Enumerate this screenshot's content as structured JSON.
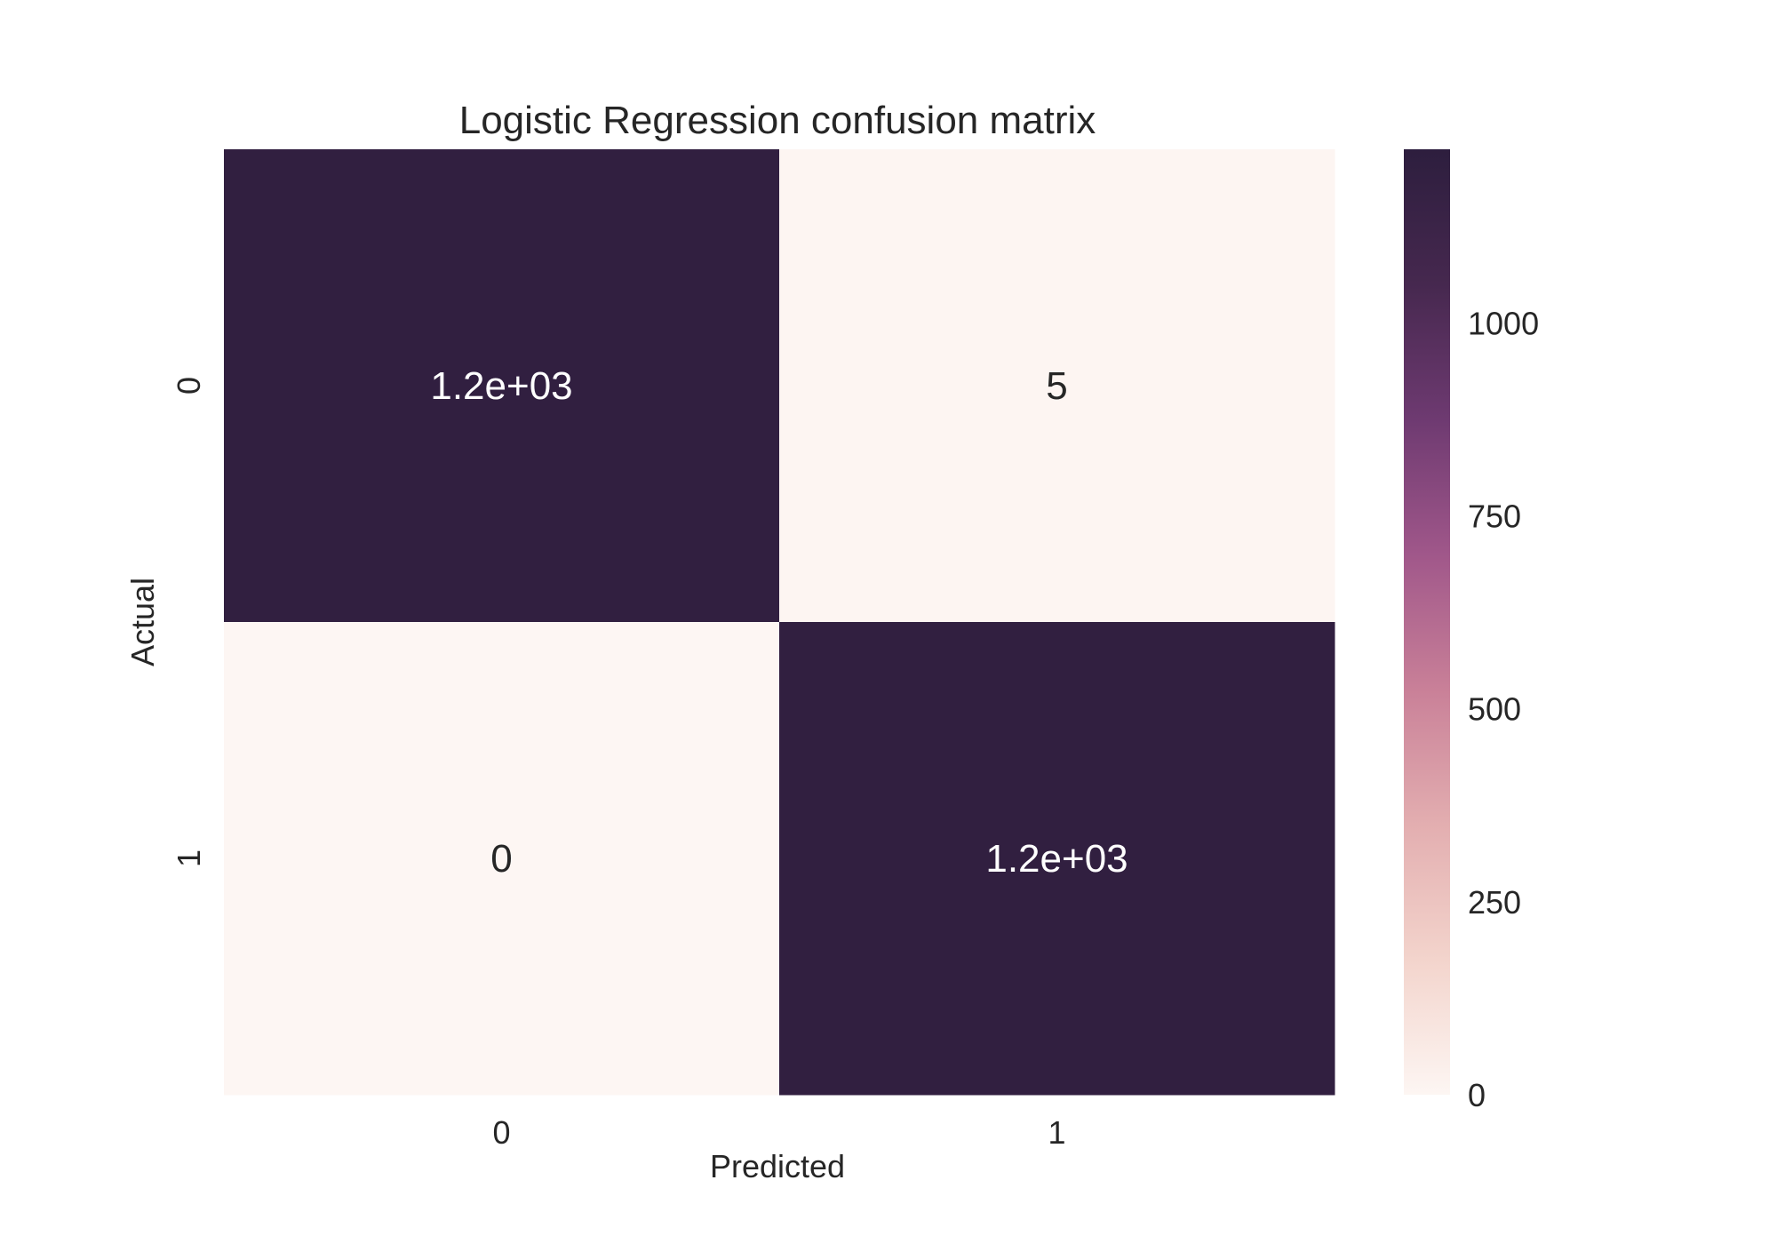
{
  "chart_data": {
    "type": "heatmap",
    "title": "Logistic Regression confusion matrix",
    "xlabel": "Predicted",
    "ylabel": "Actual",
    "x_categories": [
      "0",
      "1"
    ],
    "y_categories": [
      "0",
      "1"
    ],
    "values": [
      [
        1200,
        5
      ],
      [
        0,
        1200
      ]
    ],
    "annotations": [
      [
        "1.2e+03",
        "5"
      ],
      [
        "0",
        "1.2e+03"
      ]
    ],
    "colorbar": {
      "ticks": [
        0,
        250,
        500,
        750,
        1000
      ],
      "tick_labels": [
        "0",
        "250",
        "500",
        "750",
        "1000"
      ],
      "range": [
        0,
        1225
      ]
    },
    "colormap": {
      "stops": [
        "#fdf6f3",
        "#f3d4cc",
        "#e3aeb0",
        "#c98098",
        "#a0578a",
        "#6e3a71",
        "#46284f",
        "#2d1e3e"
      ],
      "low_text_color": "#262626",
      "high_text_color": "#ffffff"
    }
  }
}
